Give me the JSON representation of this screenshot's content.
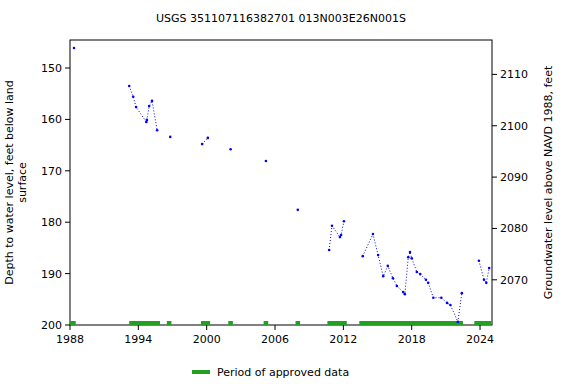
{
  "chart_data": {
    "type": "scatter",
    "title": "USGS 351107116382701 013N003E26N001S",
    "ylabel": "Depth to water level, feet below land\nsurface",
    "y2label": "Groundwater level above NAVD 1988, feet",
    "xlim": [
      1988.0,
      2025.05
    ],
    "xticks": [
      1988,
      1994,
      2000,
      2006,
      2012,
      2018,
      2024
    ],
    "ylim": [
      200,
      144.55
    ],
    "yticks": [
      150,
      160,
      170,
      180,
      190,
      200
    ],
    "y2lim": [
      2061.2,
      2116.7
    ],
    "y2ticks": [
      2070,
      2080,
      2090,
      2100,
      2110
    ],
    "grid": false,
    "x": [
      1988.35,
      null,
      1993.2,
      1993.55,
      1993.8,
      1994.7,
      1994.75,
      1994.95,
      1995.2,
      1995.65,
      null,
      1996.8,
      null,
      1999.6,
      2000.1,
      null,
      2002.1,
      null,
      2005.2,
      null,
      2008.0,
      null,
      2010.75,
      2011.0,
      2011.7,
      2011.8,
      2012.05,
      null,
      2013.7,
      2014.6,
      2015.05,
      2015.5,
      2015.9,
      2016.35,
      2016.7,
      2017.25,
      2017.4,
      2017.7,
      2017.85,
      2018.0,
      2018.45,
      2018.75,
      2019.25,
      2019.45,
      2019.9,
      2020.6,
      2021.1,
      2021.4,
      2022.05,
      2022.4,
      null,
      2023.9,
      2024.35,
      2024.55,
      2024.8
    ],
    "series": [
      {
        "color": "#0000ff",
        "marker": "circle",
        "line_style": "dotted",
        "values": [
          146.1,
          null,
          153.5,
          155.6,
          157.6,
          160.5,
          160.1,
          157.4,
          156.4,
          162.1,
          null,
          163.4,
          null,
          164.8,
          163.6,
          null,
          165.8,
          null,
          168.1,
          null,
          177.6,
          null,
          185.4,
          180.7,
          182.9,
          182.5,
          179.8,
          null,
          186.6,
          182.3,
          186.4,
          190.5,
          188.5,
          190.9,
          192.4,
          193.6,
          194.0,
          186.8,
          185.8,
          187.0,
          189.7,
          190.1,
          191.2,
          191.8,
          194.7,
          194.7,
          195.7,
          196.1,
          199.4,
          193.8,
          null,
          187.5,
          191.2,
          191.8,
          188.9
        ]
      }
    ],
    "approved_periods": {
      "name": "Period of approved data",
      "color": "#22a022",
      "ranges": [
        [
          1988.0,
          1988.5
        ],
        [
          1993.2,
          1995.9
        ],
        [
          1996.5,
          1996.9
        ],
        [
          1999.5,
          2000.3
        ],
        [
          2001.9,
          2002.3
        ],
        [
          2005.0,
          2005.4
        ],
        [
          2007.8,
          2008.2
        ],
        [
          2010.6,
          2012.3
        ],
        [
          2013.4,
          2022.5
        ],
        [
          2023.5,
          2025.0
        ]
      ]
    }
  }
}
